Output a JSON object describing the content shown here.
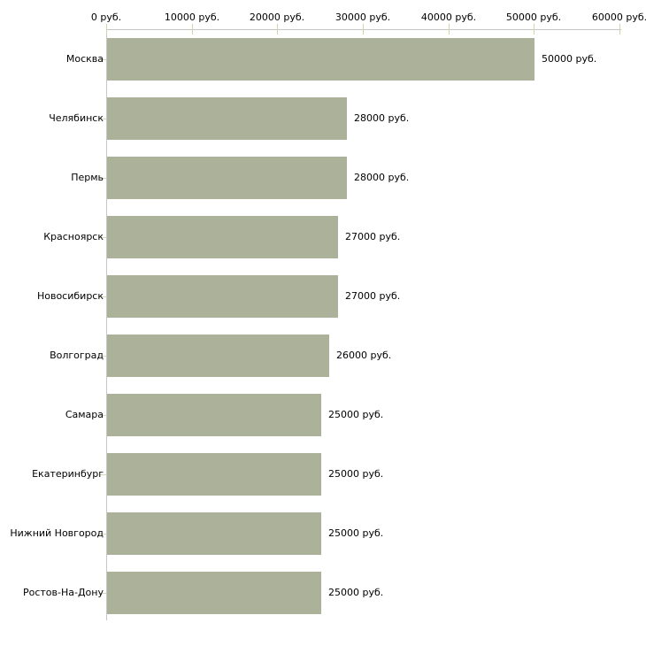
{
  "chart_data": {
    "type": "bar",
    "orientation": "horizontal",
    "title": "",
    "xlabel": "",
    "ylabel": "",
    "grid": false,
    "legend": false,
    "categories": [
      "Москва",
      "Челябинск",
      "Пермь",
      "Красноярск",
      "Новосибирск",
      "Волгоград",
      "Самара",
      "Екатеринбург",
      "Нижний Новгород",
      "Ростов-На-Дону"
    ],
    "values": [
      50000,
      28000,
      28000,
      27000,
      27000,
      26000,
      25000,
      25000,
      25000,
      25000
    ],
    "value_labels": [
      "50000 руб.",
      "28000 руб.",
      "28000 руб.",
      "27000 руб.",
      "27000 руб.",
      "26000 руб.",
      "25000 руб.",
      "25000 руб.",
      "25000 руб.",
      "25000 руб."
    ],
    "x_axis": {
      "position": "top",
      "min": 0,
      "max": 60000,
      "ticks": [
        0,
        10000,
        20000,
        30000,
        40000,
        50000,
        60000
      ],
      "tick_labels": [
        "0 руб.",
        "10000 руб.",
        "20000 руб.",
        "30000 руб.",
        "40000 руб.",
        "50000 руб.",
        "60000 руб."
      ]
    },
    "colors": {
      "bar": "#acb29a",
      "axis_line": "#c6c6c6",
      "x_tick": "#d4d4a8",
      "y_tick": "#d8d8c0",
      "text": "#000000",
      "background": "#ffffff"
    }
  }
}
